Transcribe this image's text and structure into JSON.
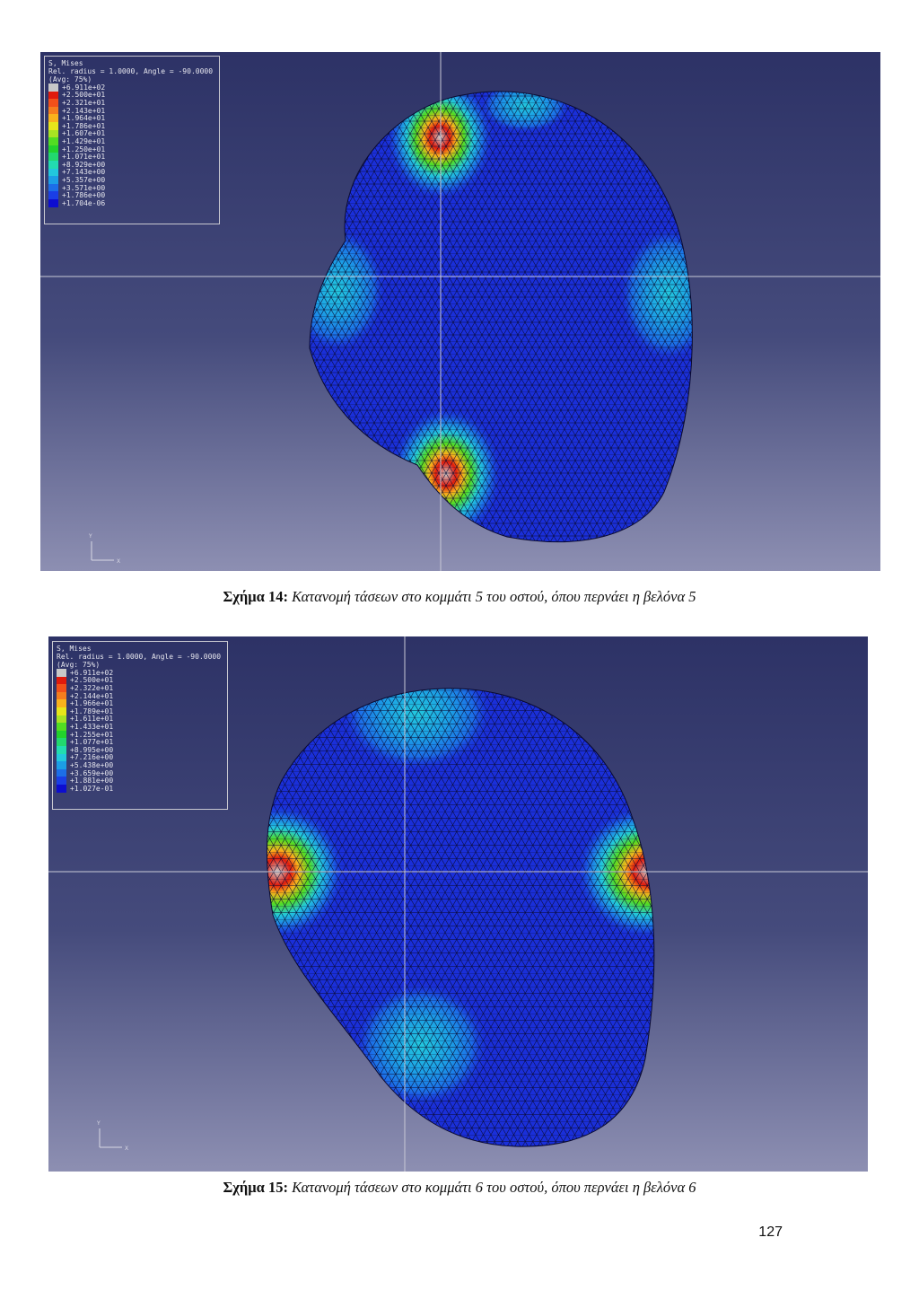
{
  "figures": [
    {
      "legend": {
        "title": "S, Mises",
        "subtitle": "Rel. radius = 1.0000, Angle = -90.0000",
        "avg": "(Avg: 75%)",
        "values": [
          "+6.911e+02",
          "+2.500e+01",
          "+2.321e+01",
          "+2.143e+01",
          "+1.964e+01",
          "+1.786e+01",
          "+1.607e+01",
          "+1.429e+01",
          "+1.250e+01",
          "+1.071e+01",
          "+8.929e+00",
          "+7.143e+00",
          "+5.357e+00",
          "+3.571e+00",
          "+1.786e+00",
          "+1.704e-06"
        ]
      },
      "axis": {
        "y": "Y",
        "x": "X"
      },
      "caption": {
        "label": "Σχήμα 14:",
        "text": "Κατανομή τάσεων στο κομμάτι 5 του οστού, όπου περνάει η βελόνα 5"
      }
    },
    {
      "legend": {
        "title": "S, Mises",
        "subtitle": "Rel. radius = 1.0000, Angle = -90.0000",
        "avg": "(Avg: 75%)",
        "values": [
          "+6.911e+02",
          "+2.500e+01",
          "+2.322e+01",
          "+2.144e+01",
          "+1.966e+01",
          "+1.789e+01",
          "+1.611e+01",
          "+1.433e+01",
          "+1.255e+01",
          "+1.077e+01",
          "+8.995e+00",
          "+7.216e+00",
          "+5.438e+00",
          "+3.659e+00",
          "+1.881e+00",
          "+1.027e-01"
        ]
      },
      "axis": {
        "y": "Y",
        "x": "X"
      },
      "caption": {
        "label": "Σχήμα 15:",
        "text": "Κατανομή τάσεων στο κομμάτι 6 του οστού, όπου περνάει η βελόνα 6"
      }
    }
  ],
  "legend_colors": [
    "#c8c8c8",
    "#e11a0c",
    "#f2501a",
    "#f57d1e",
    "#f9b21c",
    "#e7e61a",
    "#a7e323",
    "#52dc22",
    "#22d22c",
    "#22d86e",
    "#22dcb0",
    "#22c8dd",
    "#1c9ee6",
    "#1c6ee8",
    "#1a3ee6",
    "#0d0dd0"
  ],
  "page_number": "127"
}
